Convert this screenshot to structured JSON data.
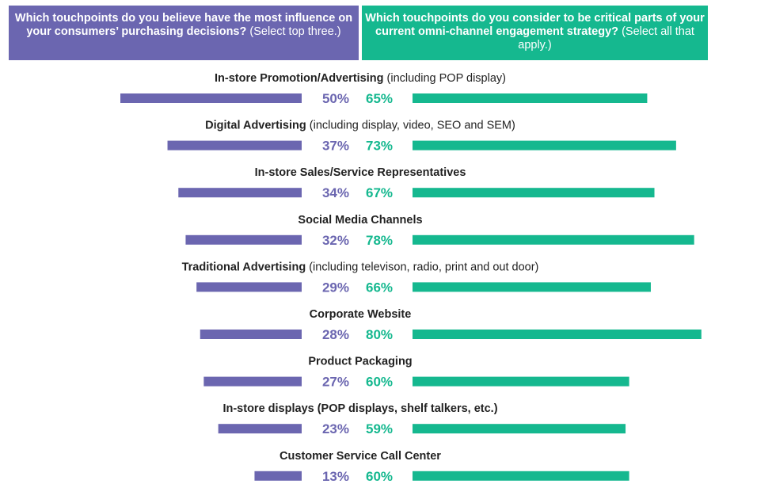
{
  "chart_data": {
    "type": "bar",
    "title": "",
    "headers": {
      "left": {
        "bold": "Which touchpoints do you believe have the most influence on your consumers’ purchasing decisions?",
        "normal": "(Select top three.)"
      },
      "right": {
        "bold": "Which touchpoints do you consider to be critical parts of your current omni-channel engagement strategy?",
        "normal": "(Select all that apply.)"
      }
    },
    "colors": {
      "left": "#6b66b0",
      "right": "#15b88f"
    },
    "categories": [
      {
        "name": "In-store Promotion/Advertising",
        "note": "(including POP display)"
      },
      {
        "name": "Digital Advertising",
        "note": "(including display, video, SEO and SEM)"
      },
      {
        "name": "In-store Sales/Service Representatives",
        "note": ""
      },
      {
        "name": "Social Media Channels",
        "note": ""
      },
      {
        "name": "Traditional Advertising",
        "note": "(including televison, radio, print and out door)"
      },
      {
        "name": "Corporate Website",
        "note": ""
      },
      {
        "name": "Product Packaging",
        "note": ""
      },
      {
        "name": "In-store displays (POP displays, shelf talkers, etc.)",
        "note": ""
      },
      {
        "name": "Customer Service Call Center",
        "note": ""
      }
    ],
    "series": [
      {
        "name": "Influence on purchasing decisions",
        "values": [
          50,
          37,
          34,
          32,
          29,
          28,
          27,
          23,
          13
        ]
      },
      {
        "name": "Critical parts of omni-channel strategy",
        "values": [
          65,
          73,
          67,
          78,
          66,
          80,
          60,
          59,
          60
        ]
      }
    ],
    "value_suffix": "%"
  }
}
